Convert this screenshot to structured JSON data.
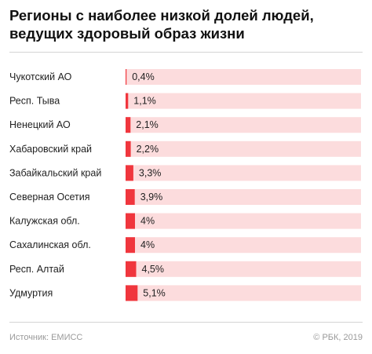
{
  "chart_data": {
    "type": "bar",
    "orientation": "horizontal",
    "title": "Регионы с наиболее низкой долей людей, ведущих здоровый образ жизни",
    "categories": [
      "Чукотский АО",
      "Респ. Тыва",
      "Ненецкий АО",
      "Хабаровский край",
      "Забайкальский край",
      "Северная Осетия",
      "Калужская обл.",
      "Сахалинская обл.",
      "Респ. Алтай",
      "Удмуртия"
    ],
    "values": [
      0.4,
      1.1,
      2.1,
      2.2,
      3.3,
      3.9,
      4,
      4,
      4.5,
      5.1
    ],
    "value_labels": [
      "0,4%",
      "1,1%",
      "2,1%",
      "2,2%",
      "3,3%",
      "3,9%",
      "4%",
      "4%",
      "4,5%",
      "5,1%"
    ],
    "unit": "%",
    "xlim": [
      0,
      100
    ],
    "colors": {
      "bar": "#f0363d",
      "track": "#fcdcdd"
    }
  },
  "footer": {
    "source": "Источник: ЕМИСС",
    "credit": "© РБК, 2019"
  }
}
